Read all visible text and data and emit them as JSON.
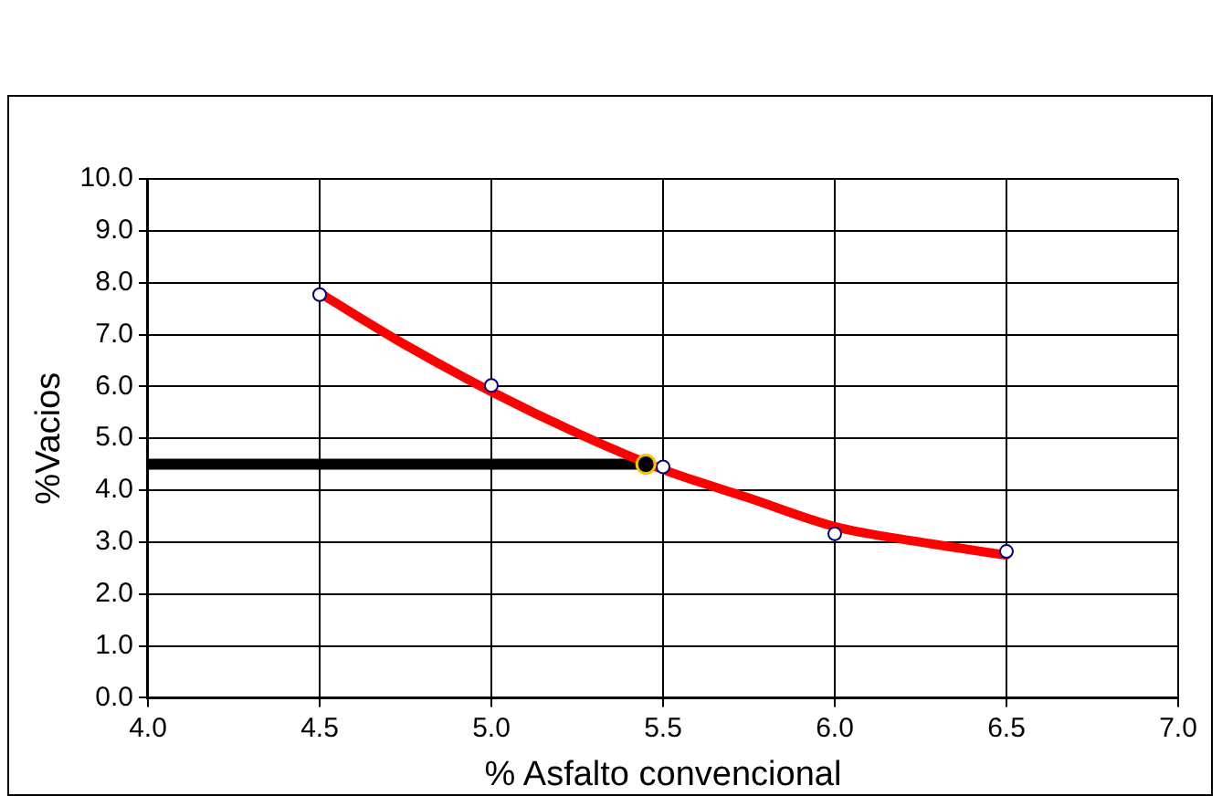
{
  "chart_data": {
    "type": "scatter",
    "xlabel": "% Asfalto convencional",
    "ylabel": "%Vacios",
    "xlim": [
      4.0,
      7.0
    ],
    "xticks": [
      {
        "value": 4,
        "label": "4.0"
      },
      {
        "value": 4.5,
        "label": "4.5"
      },
      {
        "value": 5,
        "label": "5.0"
      },
      {
        "value": 5.5,
        "label": "5.5"
      },
      {
        "value": 6,
        "label": "6.0"
      },
      {
        "value": 6.5,
        "label": "6.5"
      },
      {
        "value": 7,
        "label": "7.0"
      }
    ],
    "ylim": [
      0,
      10
    ],
    "yticks": [
      {
        "value": 0,
        "label": "0.0"
      },
      {
        "value": 1,
        "label": "1.0"
      },
      {
        "value": 2,
        "label": "2.0"
      },
      {
        "value": 3,
        "label": "3.0"
      },
      {
        "value": 4,
        "label": "4.0"
      },
      {
        "value": 5,
        "label": "5.0"
      },
      {
        "value": 6,
        "label": "6.0"
      },
      {
        "value": 7,
        "label": "7.0"
      },
      {
        "value": 8,
        "label": "8.0"
      },
      {
        "value": 9,
        "label": "9.0"
      },
      {
        "value": 10,
        "label": "10.0"
      }
    ],
    "grid": true,
    "legend": false,
    "series": [
      {
        "type": "line",
        "color": "#000000",
        "x": [
          4.0,
          5.45
        ],
        "values": [
          4.5,
          4.5
        ],
        "marker": "none"
      },
      {
        "type": "line",
        "color": "#ff0000",
        "x": [
          4.5,
          4.75,
          5.0,
          5.25,
          5.5,
          5.75,
          6.0,
          6.25,
          6.5
        ],
        "values": [
          7.8,
          6.8,
          5.9,
          5.1,
          4.4,
          3.85,
          3.3,
          3.0,
          2.75
        ],
        "marker": "none"
      },
      {
        "color": "#000080",
        "x": [
          4.5,
          5.0,
          5.5,
          6.0,
          6.5
        ],
        "values": [
          7.77,
          6.02,
          4.45,
          3.16,
          2.82
        ],
        "marker": "circle"
      },
      {
        "color": "#000000",
        "x": [
          5.45
        ],
        "values": [
          4.5
        ],
        "marker": "circle"
      }
    ]
  }
}
